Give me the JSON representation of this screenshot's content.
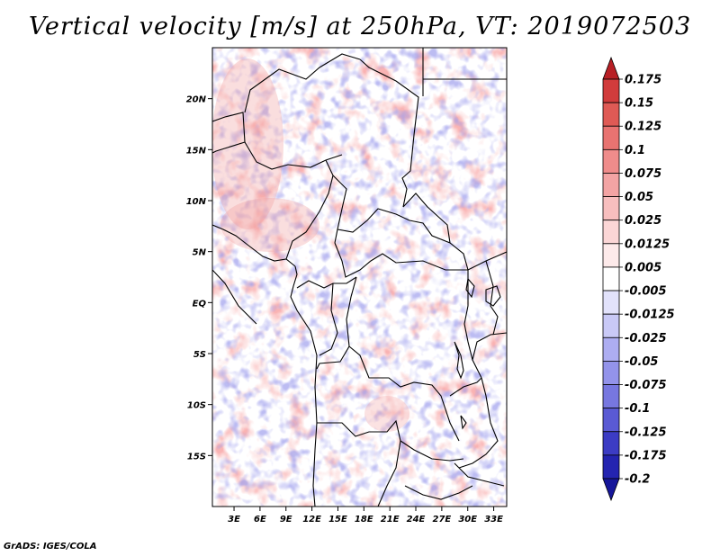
{
  "chart_data": {
    "type": "heatmap",
    "title": "Vertical velocity [m/s] at 250hPa, VT: 2019072503",
    "variable": "Vertical velocity",
    "units": "m/s",
    "level": "250hPa",
    "valid_time": "2019072503",
    "x_ticks": [
      "3E",
      "6E",
      "9E",
      "12E",
      "15E",
      "18E",
      "21E",
      "24E",
      "27E",
      "30E",
      "33E"
    ],
    "x_tick_values": [
      3,
      6,
      9,
      12,
      15,
      18,
      21,
      24,
      27,
      30,
      33
    ],
    "y_ticks": [
      "20N",
      "15N",
      "10N",
      "5N",
      "EQ",
      "5S",
      "10S",
      "15S"
    ],
    "y_tick_values": [
      20,
      15,
      10,
      5,
      0,
      -5,
      -10,
      -15
    ],
    "xlim": [
      0.5,
      34.5
    ],
    "ylim": [
      -20,
      25
    ],
    "colorbar": {
      "labels": [
        "0.175",
        "0.15",
        "0.125",
        "0.1",
        "0.075",
        "0.05",
        "0.025",
        "0.0125",
        "0.005",
        "-0.005",
        "-0.0125",
        "-0.025",
        "-0.05",
        "-0.075",
        "-0.1",
        "-0.125",
        "-0.175",
        "-0.2"
      ],
      "colors": [
        "#b81f25",
        "#d13c3c",
        "#df5a55",
        "#e87371",
        "#ef8c8b",
        "#f3a4a4",
        "#f7bebe",
        "#fbd6d6",
        "#fdeaea",
        "#ffffff",
        "#e2e2fb",
        "#c9c9f6",
        "#adadf1",
        "#9393ea",
        "#7777e0",
        "#5a5ad4",
        "#3c3cc4",
        "#2424b0",
        "#16169a"
      ]
    }
  },
  "credit": "GrADS: IGES/COLA"
}
